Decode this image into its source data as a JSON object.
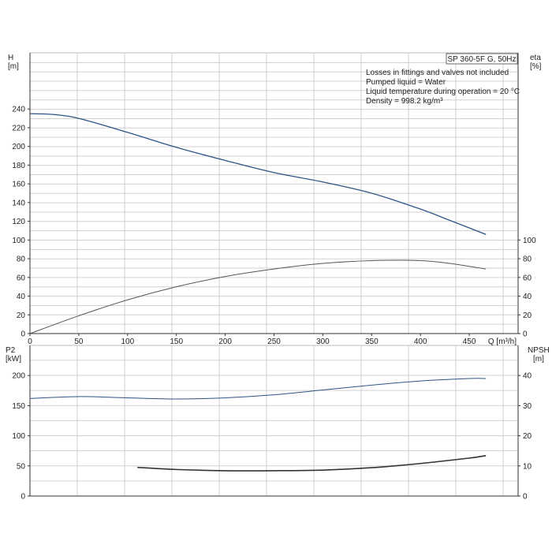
{
  "chart_data": [
    {
      "type": "line",
      "title": "SP 360-5F G, 50Hz",
      "notes": [
        "Losses in fittings and valves not included",
        "Pumped liquid = Water",
        "Liquid temperature during operation = 20 °C",
        "Density = 998.2 kg/m³"
      ],
      "xlabel": "Q [m³/h]",
      "y_left_label": [
        "H",
        "[m]"
      ],
      "y_right_label": [
        "eta",
        "[%]"
      ],
      "xlim": [
        0,
        500
      ],
      "x_ticks": [
        0,
        50,
        100,
        150,
        200,
        250,
        300,
        350,
        400,
        450
      ],
      "ylim_left": [
        0,
        300
      ],
      "y_left_ticks": [
        0,
        20,
        40,
        60,
        80,
        100,
        120,
        140,
        160,
        180,
        200,
        220,
        240
      ],
      "ylim_right": [
        0,
        300
      ],
      "y_right_ticks": [
        0,
        20,
        40,
        60,
        80,
        100
      ],
      "grid": true,
      "series": [
        {
          "axis": "left",
          "color": "#2f5486",
          "x": [
            0,
            25,
            50,
            100,
            150,
            200,
            250,
            300,
            350,
            400,
            430,
            467
          ],
          "y": [
            235,
            234,
            230,
            215,
            199,
            185,
            172,
            162,
            150,
            133,
            121,
            106
          ]
        },
        {
          "axis": "right",
          "color": "#555555",
          "x": [
            0,
            50,
            100,
            150,
            200,
            250,
            300,
            350,
            400,
            430,
            467
          ],
          "y": [
            0,
            19,
            36,
            50,
            61,
            69,
            75,
            78,
            78,
            75,
            69
          ]
        }
      ]
    },
    {
      "type": "line",
      "y_left_label": [
        "P2",
        "[kW]"
      ],
      "y_right_label": [
        "NPSH",
        "[m]"
      ],
      "xlim": [
        0,
        500
      ],
      "ylim_left": [
        0,
        250
      ],
      "y_left_ticks": [
        0,
        50,
        100,
        150,
        200
      ],
      "ylim_right": [
        0,
        50
      ],
      "y_right_ticks": [
        0,
        10,
        20,
        30,
        40
      ],
      "grid": true,
      "series": [
        {
          "axis": "left",
          "color": "#2f5486",
          "x": [
            0,
            50,
            100,
            150,
            200,
            250,
            300,
            350,
            400,
            450,
            467
          ],
          "y": [
            162,
            165,
            163,
            161,
            163,
            168,
            176,
            184,
            191,
            195,
            195
          ]
        },
        {
          "axis": "right",
          "color": "#333333",
          "x": [
            110,
            150,
            200,
            250,
            300,
            350,
            400,
            450,
            467
          ],
          "y": [
            9.5,
            8.8,
            8.4,
            8.4,
            8.6,
            9.4,
            10.8,
            12.6,
            13.4
          ]
        }
      ]
    }
  ]
}
